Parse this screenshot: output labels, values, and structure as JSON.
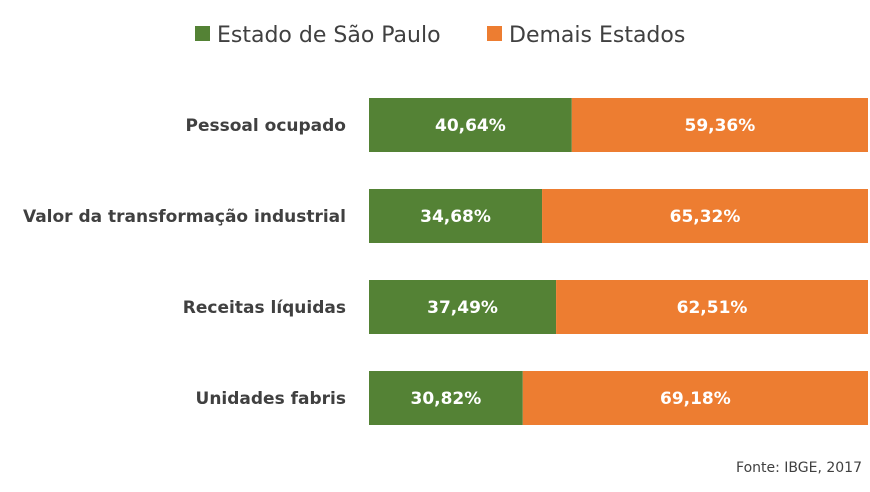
{
  "chart_data": {
    "type": "bar",
    "orientation": "horizontal",
    "stacked": true,
    "percent_stacked": true,
    "categories": [
      "Pessoal ocupado",
      "Valor da transformação industrial",
      "Receitas líquidas",
      "Unidades fabris"
    ],
    "series": [
      {
        "name": "Estado de São Paulo",
        "color": "#548235",
        "values": [
          40.64,
          34.68,
          37.49,
          30.82
        ],
        "labels": [
          "40,64%",
          "34,68%",
          "37,49%",
          "30,82%"
        ]
      },
      {
        "name": "Demais Estados",
        "color": "#ED7D31",
        "values": [
          59.36,
          65.32,
          62.51,
          69.18
        ],
        "labels": [
          "59,36%",
          "65,32%",
          "62,51%",
          "69,18%"
        ]
      }
    ],
    "xlim": [
      0,
      100
    ],
    "grid": false,
    "legend_position": "top",
    "source": "Fonte: IBGE, 2017"
  }
}
